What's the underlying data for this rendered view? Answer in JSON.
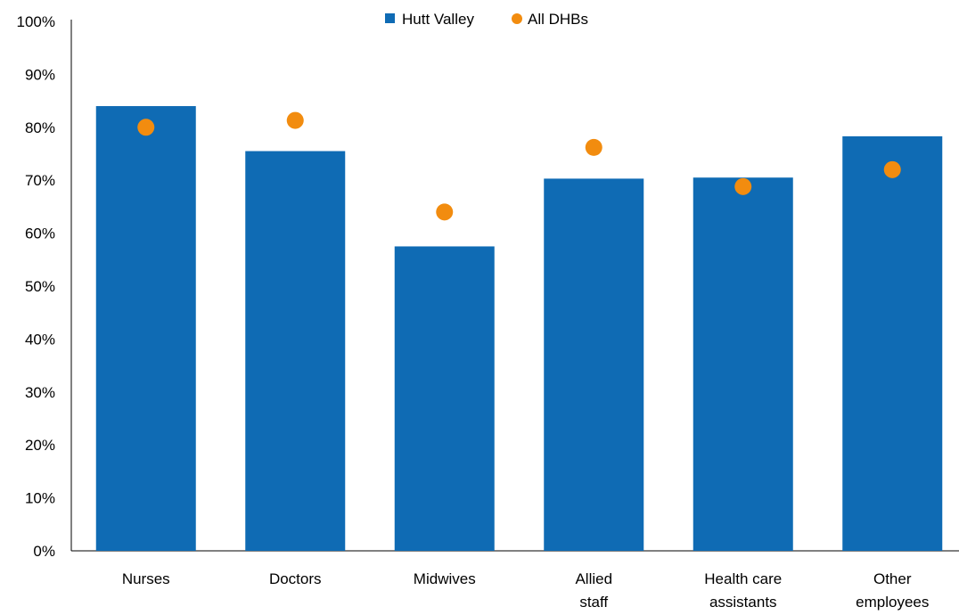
{
  "chart_data": {
    "type": "bar",
    "categories": [
      [
        "Nurses"
      ],
      [
        "Doctors"
      ],
      [
        "Midwives"
      ],
      [
        "Allied",
        "staff"
      ],
      [
        "Health care",
        "assistants"
      ],
      [
        "Other",
        "employees"
      ]
    ],
    "series": [
      {
        "name": "Hutt Valley",
        "kind": "bar",
        "color": "#0f6bb4",
        "values": [
          84,
          75.5,
          57.5,
          70.3,
          70.5,
          78.3
        ]
      },
      {
        "name": "All DHBs",
        "kind": "dot",
        "color": "#f28c0f",
        "values": [
          80,
          81.3,
          64,
          76.2,
          68.8,
          72
        ]
      }
    ],
    "ylim": [
      0,
      100
    ],
    "yticks": [
      0,
      10,
      20,
      30,
      40,
      50,
      60,
      70,
      80,
      90,
      100
    ],
    "ytick_suffix": "%",
    "title": "",
    "xlabel": "",
    "ylabel": "",
    "legend": "top-center",
    "grid": false,
    "axis_color": "#000000"
  }
}
